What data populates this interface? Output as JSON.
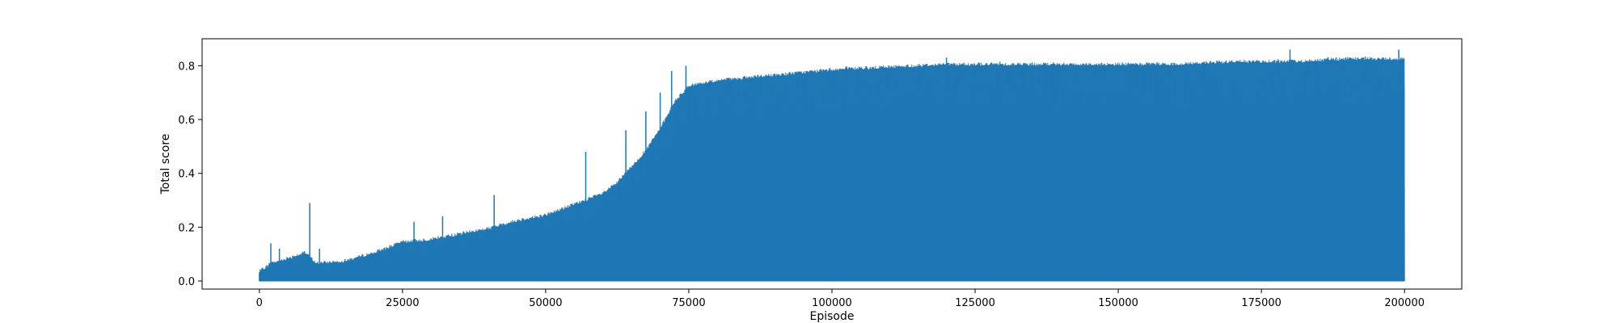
{
  "chart_data": {
    "type": "line",
    "title": "",
    "xlabel": "Episode",
    "ylabel": "Total score",
    "xlim": [
      -10000,
      210000
    ],
    "ylim": [
      -0.03,
      0.9
    ],
    "xticks": [
      0,
      25000,
      50000,
      75000,
      100000,
      125000,
      150000,
      175000,
      200000
    ],
    "xtick_labels": [
      "0",
      "25000",
      "50000",
      "75000",
      "100000",
      "125000",
      "150000",
      "175000",
      "200000"
    ],
    "yticks": [
      0.0,
      0.2,
      0.4,
      0.6,
      0.8
    ],
    "ytick_labels": [
      "0.0",
      "0.2",
      "0.4",
      "0.6",
      "0.8"
    ],
    "grid": false,
    "legend": "none",
    "series": [
      {
        "color": "#1f77b4",
        "baseline": 0.0,
        "upper_envelope": {
          "x": [
            0,
            2000,
            5000,
            8000,
            10000,
            15000,
            20000,
            25000,
            30000,
            35000,
            40000,
            45000,
            50000,
            55000,
            60000,
            62500,
            65000,
            67500,
            70000,
            72500,
            75000,
            80000,
            85000,
            90000,
            95000,
            100000,
            110000,
            120000,
            130000,
            140000,
            150000,
            160000,
            170000,
            180000,
            190000,
            200000
          ],
          "y": [
            0.03,
            0.06,
            0.08,
            0.1,
            0.06,
            0.07,
            0.1,
            0.14,
            0.15,
            0.17,
            0.19,
            0.22,
            0.24,
            0.28,
            0.32,
            0.36,
            0.42,
            0.48,
            0.56,
            0.66,
            0.72,
            0.74,
            0.75,
            0.76,
            0.77,
            0.78,
            0.79,
            0.8,
            0.8,
            0.8,
            0.8,
            0.8,
            0.81,
            0.81,
            0.82,
            0.82
          ]
        },
        "spikes": [
          {
            "x": 2000,
            "y": 0.14
          },
          {
            "x": 3500,
            "y": 0.12
          },
          {
            "x": 8800,
            "y": 0.29
          },
          {
            "x": 10500,
            "y": 0.12
          },
          {
            "x": 27000,
            "y": 0.22
          },
          {
            "x": 32000,
            "y": 0.24
          },
          {
            "x": 41000,
            "y": 0.32
          },
          {
            "x": 57000,
            "y": 0.48
          },
          {
            "x": 64000,
            "y": 0.56
          },
          {
            "x": 67500,
            "y": 0.63
          },
          {
            "x": 70000,
            "y": 0.7
          },
          {
            "x": 72000,
            "y": 0.78
          },
          {
            "x": 74500,
            "y": 0.8
          },
          {
            "x": 120000,
            "y": 0.83
          },
          {
            "x": 180000,
            "y": 0.86
          },
          {
            "x": 199000,
            "y": 0.86
          }
        ]
      }
    ]
  }
}
